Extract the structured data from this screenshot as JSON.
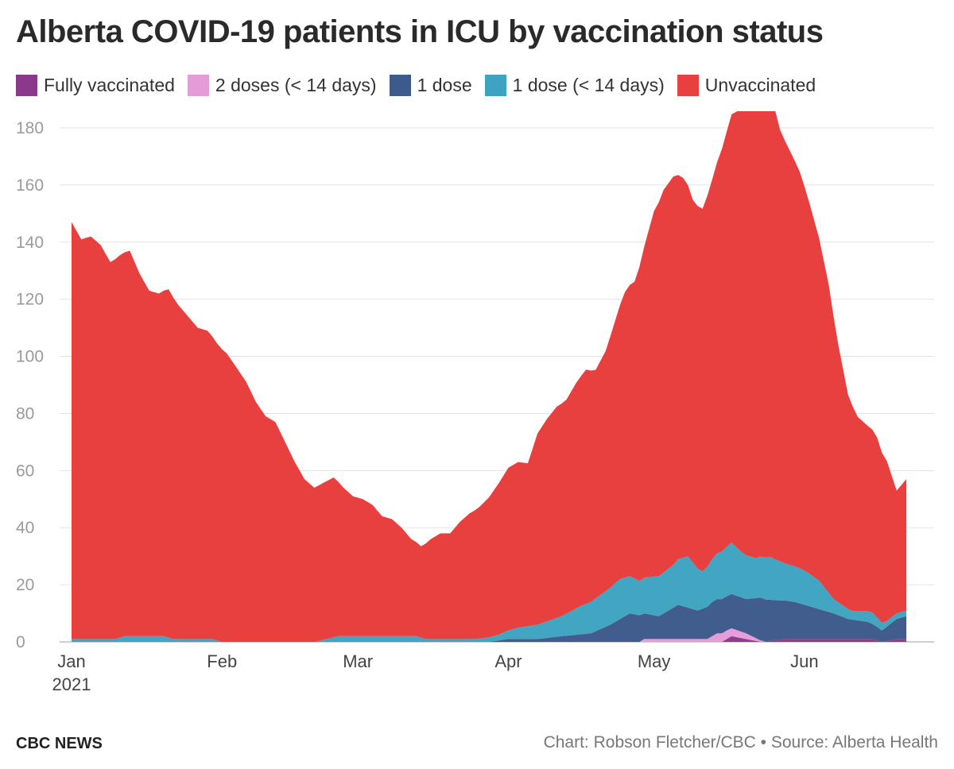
{
  "title": "Alberta COVID-19 patients in ICU by vaccination status",
  "footer": {
    "brand": "CBC NEWS",
    "credit": "Chart: Robson Fletcher/CBC • Source: Alberta Health"
  },
  "chart_data": {
    "type": "area",
    "stacked": true,
    "title": "Alberta COVID-19 patients in ICU by vaccination status",
    "xlabel": "",
    "ylabel": "",
    "x_range": [
      "2021-01-01",
      "2021-06-22"
    ],
    "ylim": [
      0,
      180
    ],
    "y_ticks": [
      0,
      20,
      40,
      60,
      80,
      100,
      120,
      140,
      160,
      180
    ],
    "x_ticks": [
      {
        "date": "2021-01-01",
        "label": "Jan",
        "sublabel": "2021"
      },
      {
        "date": "2021-02-01",
        "label": "Feb",
        "sublabel": ""
      },
      {
        "date": "2021-03-01",
        "label": "Mar",
        "sublabel": ""
      },
      {
        "date": "2021-04-01",
        "label": "Apr",
        "sublabel": ""
      },
      {
        "date": "2021-05-01",
        "label": "May",
        "sublabel": ""
      },
      {
        "date": "2021-06-01",
        "label": "Jun",
        "sublabel": ""
      }
    ],
    "grid": true,
    "legend_position": "top-left",
    "series": [
      {
        "name": "Fully vaccinated",
        "color": "#8b3a8b",
        "points": [
          [
            "2021-01-01",
            0
          ],
          [
            "2021-05-15",
            0
          ],
          [
            "2021-05-17",
            2
          ],
          [
            "2021-05-20",
            1
          ],
          [
            "2021-05-23",
            0
          ],
          [
            "2021-05-28",
            1
          ],
          [
            "2021-06-15",
            1
          ],
          [
            "2021-06-17",
            0
          ],
          [
            "2021-06-20",
            1
          ],
          [
            "2021-06-22",
            1
          ]
        ]
      },
      {
        "name": "2 doses (< 14 days)",
        "color": "#e59bd8",
        "points": [
          [
            "2021-01-01",
            0
          ],
          [
            "2021-04-28",
            0
          ],
          [
            "2021-04-29",
            1
          ],
          [
            "2021-05-12",
            1
          ],
          [
            "2021-05-14",
            3
          ],
          [
            "2021-05-16",
            3
          ],
          [
            "2021-05-20",
            2
          ],
          [
            "2021-05-22",
            1
          ],
          [
            "2021-05-24",
            0
          ],
          [
            "2021-06-22",
            0
          ]
        ]
      },
      {
        "name": "1 dose",
        "color": "#3d5a8c",
        "points": [
          [
            "2021-01-01",
            0
          ],
          [
            "2021-03-28",
            0
          ],
          [
            "2021-04-01",
            1
          ],
          [
            "2021-04-07",
            1
          ],
          [
            "2021-04-12",
            2
          ],
          [
            "2021-04-18",
            3
          ],
          [
            "2021-04-22",
            6
          ],
          [
            "2021-04-26",
            10
          ],
          [
            "2021-05-02",
            8
          ],
          [
            "2021-05-06",
            12
          ],
          [
            "2021-05-10",
            10
          ],
          [
            "2021-05-13",
            12
          ],
          [
            "2021-05-17",
            12
          ],
          [
            "2021-05-20",
            12
          ],
          [
            "2021-05-23",
            15
          ],
          [
            "2021-05-26",
            14
          ],
          [
            "2021-05-30",
            13
          ],
          [
            "2021-06-03",
            11
          ],
          [
            "2021-06-07",
            9
          ],
          [
            "2021-06-10",
            7
          ],
          [
            "2021-06-14",
            6
          ],
          [
            "2021-06-17",
            4
          ],
          [
            "2021-06-20",
            7
          ],
          [
            "2021-06-22",
            8
          ]
        ]
      },
      {
        "name": "1 dose (< 14 days)",
        "color": "#3ea3c0",
        "points": [
          [
            "2021-01-01",
            1
          ],
          [
            "2021-01-10",
            1
          ],
          [
            "2021-01-12",
            2
          ],
          [
            "2021-01-20",
            2
          ],
          [
            "2021-01-22",
            1
          ],
          [
            "2021-01-30",
            1
          ],
          [
            "2021-02-01",
            0
          ],
          [
            "2021-02-20",
            0
          ],
          [
            "2021-02-25",
            2
          ],
          [
            "2021-03-13",
            2
          ],
          [
            "2021-03-15",
            1
          ],
          [
            "2021-03-20",
            1
          ],
          [
            "2021-03-25",
            1
          ],
          [
            "2021-03-30",
            2
          ],
          [
            "2021-04-03",
            4
          ],
          [
            "2021-04-07",
            5
          ],
          [
            "2021-04-12",
            7
          ],
          [
            "2021-04-16",
            10
          ],
          [
            "2021-04-20",
            12
          ],
          [
            "2021-04-24",
            14
          ],
          [
            "2021-04-28",
            12
          ],
          [
            "2021-05-02",
            14
          ],
          [
            "2021-05-05",
            15
          ],
          [
            "2021-05-08",
            18
          ],
          [
            "2021-05-11",
            13
          ],
          [
            "2021-05-14",
            16
          ],
          [
            "2021-05-17",
            18
          ],
          [
            "2021-05-19",
            16
          ],
          [
            "2021-05-22",
            14
          ],
          [
            "2021-05-25",
            15
          ],
          [
            "2021-05-28",
            13
          ],
          [
            "2021-06-01",
            12
          ],
          [
            "2021-06-04",
            10
          ],
          [
            "2021-06-07",
            5
          ],
          [
            "2021-06-11",
            3
          ],
          [
            "2021-06-15",
            4
          ],
          [
            "2021-06-18",
            2
          ],
          [
            "2021-06-22",
            2
          ]
        ]
      },
      {
        "name": "Unvaccinated",
        "color": "#e8403e",
        "points": [
          [
            "2021-01-01",
            146
          ],
          [
            "2021-01-03",
            140
          ],
          [
            "2021-01-05",
            141
          ],
          [
            "2021-01-07",
            138
          ],
          [
            "2021-01-09",
            132
          ],
          [
            "2021-01-11",
            134
          ],
          [
            "2021-01-13",
            135
          ],
          [
            "2021-01-15",
            127
          ],
          [
            "2021-01-17",
            121
          ],
          [
            "2021-01-19",
            120
          ],
          [
            "2021-01-21",
            122
          ],
          [
            "2021-01-23",
            117
          ],
          [
            "2021-01-25",
            113
          ],
          [
            "2021-01-27",
            109
          ],
          [
            "2021-01-29",
            108
          ],
          [
            "2021-01-31",
            104
          ],
          [
            "2021-02-02",
            101
          ],
          [
            "2021-02-04",
            96
          ],
          [
            "2021-02-06",
            91
          ],
          [
            "2021-02-08",
            84
          ],
          [
            "2021-02-10",
            79
          ],
          [
            "2021-02-12",
            77
          ],
          [
            "2021-02-14",
            70
          ],
          [
            "2021-02-16",
            63
          ],
          [
            "2021-02-18",
            57
          ],
          [
            "2021-02-20",
            54
          ],
          [
            "2021-02-22",
            55
          ],
          [
            "2021-02-24",
            56
          ],
          [
            "2021-02-26",
            52
          ],
          [
            "2021-02-28",
            49
          ],
          [
            "2021-03-02",
            48
          ],
          [
            "2021-03-04",
            46
          ],
          [
            "2021-03-06",
            42
          ],
          [
            "2021-03-08",
            41
          ],
          [
            "2021-03-10",
            38
          ],
          [
            "2021-03-12",
            34
          ],
          [
            "2021-03-14",
            32
          ],
          [
            "2021-03-16",
            35
          ],
          [
            "2021-03-18",
            37
          ],
          [
            "2021-03-20",
            37
          ],
          [
            "2021-03-22",
            41
          ],
          [
            "2021-03-24",
            44
          ],
          [
            "2021-03-26",
            46
          ],
          [
            "2021-03-28",
            49
          ],
          [
            "2021-03-30",
            53
          ],
          [
            "2021-04-01",
            57
          ],
          [
            "2021-04-03",
            58
          ],
          [
            "2021-04-05",
            57
          ],
          [
            "2021-04-07",
            67
          ],
          [
            "2021-04-09",
            71
          ],
          [
            "2021-04-11",
            74
          ],
          [
            "2021-04-13",
            75
          ],
          [
            "2021-04-15",
            79
          ],
          [
            "2021-04-17",
            82
          ],
          [
            "2021-04-19",
            80
          ],
          [
            "2021-04-21",
            84
          ],
          [
            "2021-04-23",
            92
          ],
          [
            "2021-04-25",
            100
          ],
          [
            "2021-04-27",
            104
          ],
          [
            "2021-04-29",
            116
          ],
          [
            "2021-05-01",
            128
          ],
          [
            "2021-05-03",
            134
          ],
          [
            "2021-05-05",
            136
          ],
          [
            "2021-05-07",
            133
          ],
          [
            "2021-05-09",
            127
          ],
          [
            "2021-05-11",
            127
          ],
          [
            "2021-05-13",
            133
          ],
          [
            "2021-05-15",
            141
          ],
          [
            "2021-05-17",
            150
          ],
          [
            "2021-05-19",
            155
          ],
          [
            "2021-05-21",
            157
          ],
          [
            "2021-05-23",
            163
          ],
          [
            "2021-05-25",
            163
          ],
          [
            "2021-05-27",
            151
          ],
          [
            "2021-05-29",
            145
          ],
          [
            "2021-05-31",
            139
          ],
          [
            "2021-06-02",
            130
          ],
          [
            "2021-06-04",
            120
          ],
          [
            "2021-06-06",
            108
          ],
          [
            "2021-06-08",
            90
          ],
          [
            "2021-06-10",
            75
          ],
          [
            "2021-06-12",
            68
          ],
          [
            "2021-06-14",
            65
          ],
          [
            "2021-06-16",
            63
          ],
          [
            "2021-06-18",
            56
          ],
          [
            "2021-06-20",
            43
          ],
          [
            "2021-06-22",
            46
          ]
        ]
      }
    ]
  }
}
